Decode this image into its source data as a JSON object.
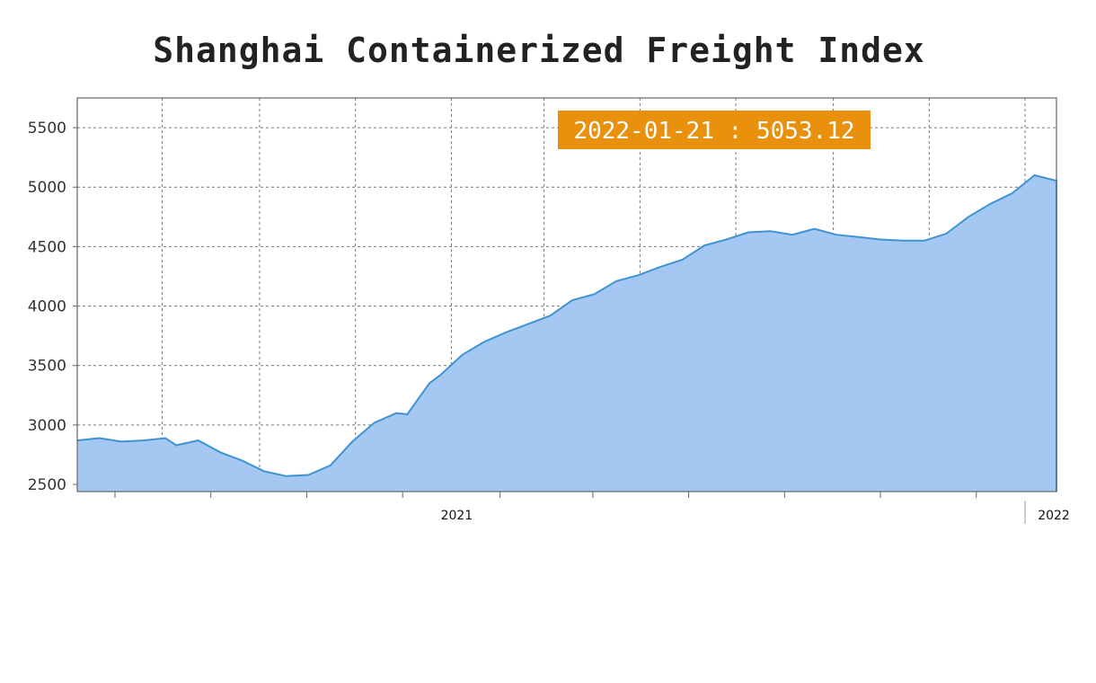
{
  "chart_data": {
    "type": "area",
    "title": "Shanghai Containerized Freight Index",
    "xlabel": "",
    "ylabel": "",
    "x_range": [
      "2020-05-08",
      "2022-01-21"
    ],
    "ylim": [
      2440,
      5750
    ],
    "y_ticks": [
      2500,
      3000,
      3500,
      4000,
      4500,
      5000,
      5500
    ],
    "x_year_labels": [
      {
        "date": "2021-01-01",
        "label": "2021"
      },
      {
        "date": "2022-01-01",
        "label": "2022"
      }
    ],
    "grid": true,
    "series": [
      {
        "x": [
          "2020-05-08",
          "2020-05-22",
          "2020-06-05",
          "2020-06-19",
          "2020-07-03",
          "2020-07-10",
          "2020-07-24",
          "2020-08-07",
          "2020-08-21",
          "2020-09-04",
          "2020-09-18",
          "2020-10-02",
          "2020-10-16",
          "2020-10-30",
          "2020-11-13",
          "2020-11-27",
          "2020-12-04",
          "2020-12-18",
          "2020-12-25",
          "2021-01-08",
          "2021-01-22",
          "2021-02-05",
          "2021-02-19",
          "2021-03-05",
          "2021-03-19",
          "2021-04-02",
          "2021-04-16",
          "2021-04-30",
          "2021-05-14",
          "2021-05-28",
          "2021-06-11",
          "2021-06-25",
          "2021-07-09",
          "2021-07-23",
          "2021-08-06",
          "2021-08-20",
          "2021-09-03",
          "2021-09-17",
          "2021-10-01",
          "2021-10-15",
          "2021-10-29",
          "2021-11-12",
          "2021-11-26",
          "2021-12-10",
          "2021-12-24",
          "2022-01-07",
          "2022-01-21"
        ],
        "y": [
          2870,
          2890,
          2860,
          2870,
          2890,
          2830,
          2870,
          2770,
          2700,
          2610,
          2570,
          2580,
          2660,
          2860,
          3020,
          3100,
          3090,
          3350,
          3420,
          3590,
          3700,
          3780,
          3850,
          3920,
          4050,
          4100,
          4210,
          4260,
          4330,
          4390,
          4510,
          4560,
          4620,
          4630,
          4600,
          4650,
          4600,
          4580,
          4560,
          4550,
          4550,
          4610,
          4750,
          4860,
          4950,
          5100,
          5053.12
        ]
      }
    ],
    "annotation": "2022-01-21 : 5053.12",
    "colors": {
      "fill": "#a5c8f3",
      "line": "#3f93d2",
      "badge": "#e9900c",
      "grid": "#777777",
      "frame": "#666666"
    }
  }
}
